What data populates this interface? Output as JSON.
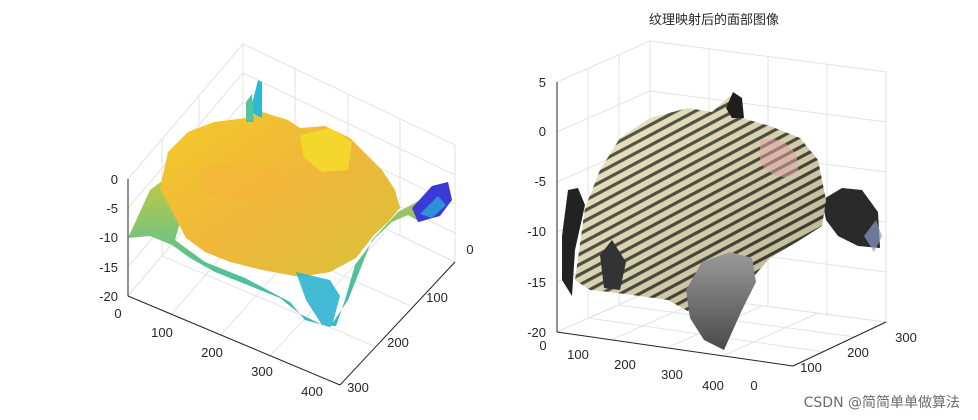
{
  "chart_data": [
    {
      "type": "surface3d",
      "title": "",
      "colormap": "parula",
      "x_ticks": [
        "0",
        "100",
        "200",
        "300",
        "400"
      ],
      "y_ticks": [
        "0",
        "100",
        "200",
        "300"
      ],
      "z_ticks": [
        "0",
        "-5",
        "-10",
        "-15",
        "-20"
      ],
      "xlim": [
        0,
        420
      ],
      "ylim": [
        0,
        320
      ],
      "zlim": [
        -20,
        0
      ],
      "grid": true
    },
    {
      "type": "surface3d",
      "title": "纹理映射后的面部图像",
      "colormap": "texture",
      "x_ticks": [
        "0",
        "100",
        "200",
        "300",
        "400"
      ],
      "y_ticks": [
        "0",
        "100",
        "200",
        "300"
      ],
      "z_ticks": [
        "5",
        "0",
        "-5",
        "-10",
        "-15",
        "-20"
      ],
      "xlim": [
        0,
        420
      ],
      "ylim": [
        0,
        320
      ],
      "zlim": [
        -20,
        5
      ],
      "grid": true
    }
  ],
  "watermark": "CSDN @简简单单做算法"
}
